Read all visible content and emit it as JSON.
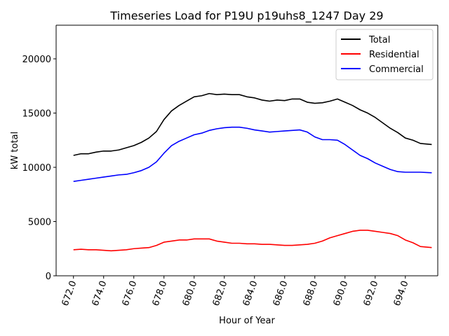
{
  "chart_data": {
    "type": "line",
    "title": "Timeseries Load for P19U p19uhs8_1247  Day 29",
    "xlabel": "Hour of Year",
    "ylabel": "kW total",
    "xlim": [
      670.85,
      696.15
    ],
    "ylim": [
      0,
      23100
    ],
    "xticks": [
      672,
      674,
      676,
      678,
      680,
      682,
      684,
      686,
      688,
      690,
      692,
      694
    ],
    "xtick_labels": [
      "672.0",
      "674.0",
      "676.0",
      "678.0",
      "680.0",
      "682.0",
      "684.0",
      "686.0",
      "688.0",
      "690.0",
      "692.0",
      "694.0"
    ],
    "yticks": [
      0,
      5000,
      10000,
      15000,
      20000
    ],
    "ytick_labels": [
      "0",
      "5000",
      "10000",
      "15000",
      "20000"
    ],
    "grid": false,
    "legend_position": "top-right",
    "x": [
      672.0,
      672.5,
      673.0,
      673.5,
      674.0,
      674.5,
      675.0,
      675.5,
      676.0,
      676.5,
      677.0,
      677.5,
      678.0,
      678.5,
      679.0,
      679.5,
      680.0,
      680.5,
      681.0,
      681.5,
      682.0,
      682.5,
      683.0,
      683.5,
      684.0,
      684.5,
      685.0,
      685.5,
      686.0,
      686.5,
      687.0,
      687.5,
      688.0,
      688.5,
      689.0,
      689.5,
      690.0,
      690.5,
      691.0,
      691.5,
      692.0,
      692.5,
      693.0,
      693.5,
      694.0,
      694.5,
      695.0,
      695.75
    ],
    "series": [
      {
        "name": "Total",
        "color": "#000000",
        "values": [
          11100,
          11250,
          11250,
          11400,
          11500,
          11500,
          11600,
          11800,
          12000,
          12300,
          12700,
          13300,
          14400,
          15200,
          15700,
          16100,
          16500,
          16600,
          16800,
          16700,
          16750,
          16700,
          16700,
          16500,
          16400,
          16200,
          16100,
          16200,
          16150,
          16300,
          16300,
          16000,
          15900,
          15950,
          16100,
          16300,
          16000,
          15700,
          15300,
          15000,
          14600,
          14100,
          13600,
          13200,
          12700,
          12500,
          12200,
          12100
        ]
      },
      {
        "name": "Residential",
        "color": "#ff0000",
        "values": [
          2400,
          2450,
          2400,
          2400,
          2350,
          2300,
          2350,
          2400,
          2500,
          2550,
          2600,
          2800,
          3100,
          3200,
          3300,
          3300,
          3400,
          3400,
          3400,
          3200,
          3100,
          3000,
          3000,
          2950,
          2950,
          2900,
          2900,
          2850,
          2800,
          2800,
          2850,
          2900,
          3000,
          3200,
          3500,
          3700,
          3900,
          4100,
          4200,
          4200,
          4100,
          4000,
          3900,
          3700,
          3300,
          3050,
          2700,
          2600
        ]
      },
      {
        "name": "Commercial",
        "color": "#0000ff",
        "values": [
          8700,
          8800,
          8900,
          9000,
          9100,
          9200,
          9300,
          9350,
          9500,
          9700,
          10000,
          10500,
          11300,
          12000,
          12400,
          12700,
          13000,
          13150,
          13400,
          13550,
          13650,
          13700,
          13700,
          13600,
          13450,
          13350,
          13250,
          13300,
          13350,
          13400,
          13450,
          13250,
          12800,
          12550,
          12550,
          12500,
          12100,
          11600,
          11100,
          10800,
          10400,
          10100,
          9800,
          9600,
          9550,
          9550,
          9550,
          9500
        ]
      }
    ]
  }
}
